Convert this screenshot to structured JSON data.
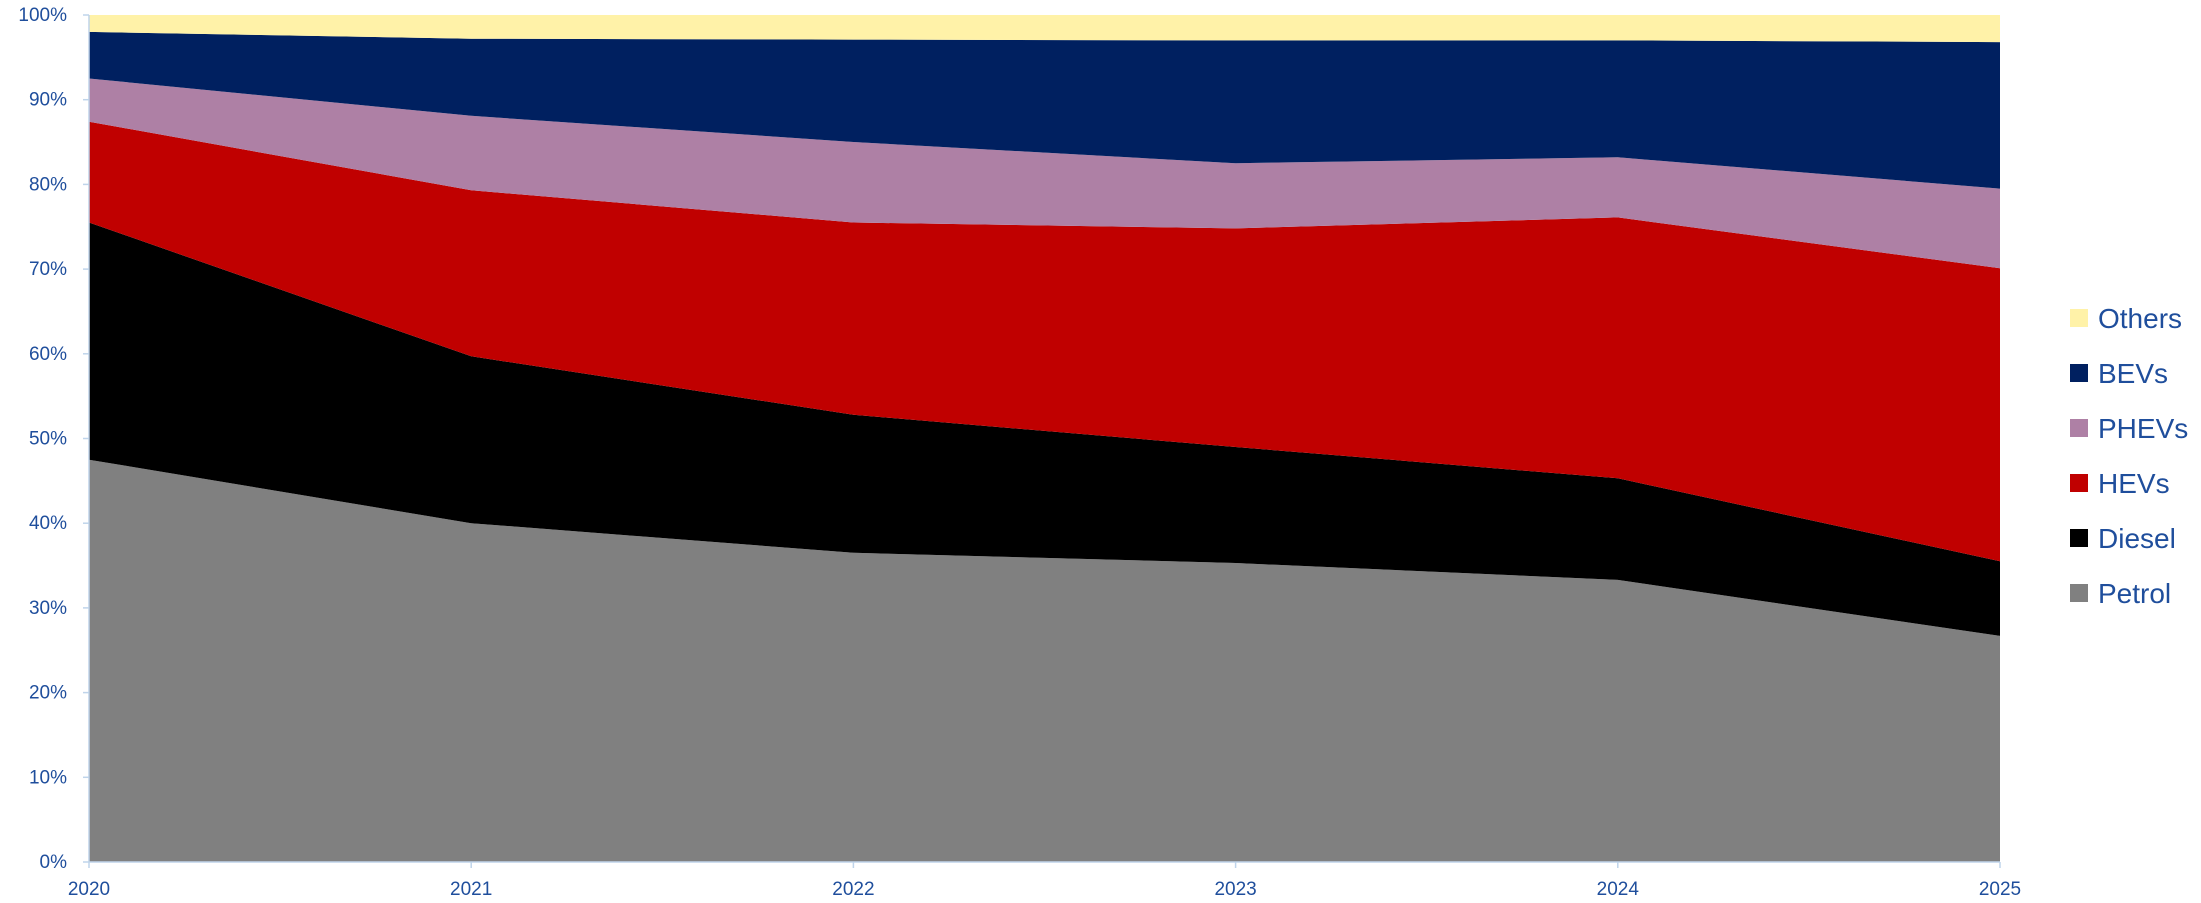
{
  "chart_data": {
    "type": "area",
    "stacked": true,
    "percent_stacked": true,
    "x": [
      "2020",
      "2021",
      "2022",
      "2023",
      "2024",
      "2025"
    ],
    "ylim": [
      0,
      100
    ],
    "y_ticks": [
      "0%",
      "10%",
      "20%",
      "30%",
      "40%",
      "50%",
      "60%",
      "70%",
      "80%",
      "90%",
      "100%"
    ],
    "grid": false,
    "legend_position": "right",
    "series": [
      {
        "name": "Petrol",
        "color": "#808080",
        "values": [
          47.5,
          40.0,
          36.5,
          35.3,
          33.3,
          26.7
        ]
      },
      {
        "name": "Diesel",
        "color": "#000000",
        "values": [
          28.0,
          19.7,
          16.3,
          13.7,
          12.0,
          8.8
        ]
      },
      {
        "name": "HEVs",
        "color": "#c00000",
        "values": [
          11.9,
          19.6,
          22.7,
          25.8,
          30.8,
          34.6
        ]
      },
      {
        "name": "PHEVs",
        "color": "#ae80a5",
        "values": [
          5.1,
          8.8,
          9.5,
          7.7,
          7.1,
          9.4
        ]
      },
      {
        "name": "BEVs",
        "color": "#002060",
        "values": [
          5.5,
          9.1,
          12.1,
          14.5,
          13.8,
          17.3
        ]
      },
      {
        "name": "Others",
        "color": "#fff2a8",
        "values": [
          2.0,
          2.8,
          2.9,
          3.0,
          3.0,
          3.2
        ]
      }
    ]
  }
}
